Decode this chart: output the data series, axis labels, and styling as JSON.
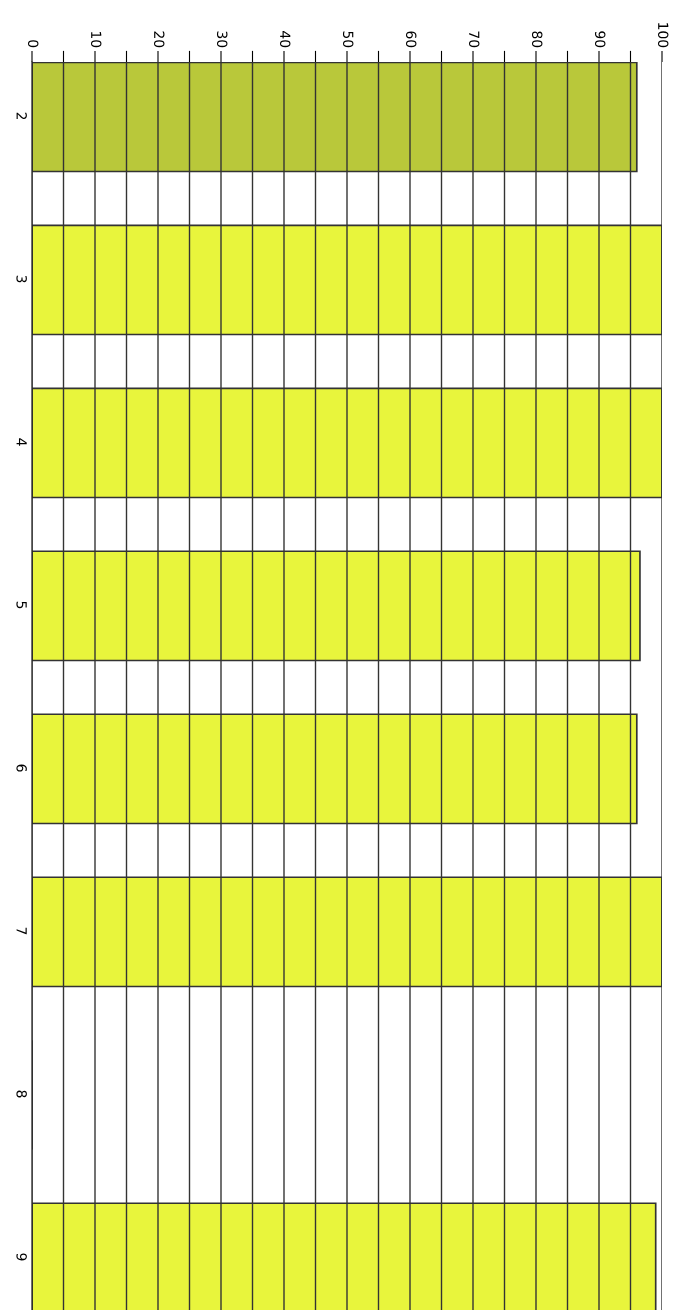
{
  "chart_data": {
    "type": "bar",
    "orientation": "horizontal",
    "categories": [
      "2",
      "3",
      "4",
      "5",
      "6",
      "7",
      "8",
      "9"
    ],
    "values": [
      96,
      100,
      100,
      96.5,
      96,
      100,
      0,
      99
    ],
    "colors": [
      "#b9c83a",
      "#e8f53c",
      "#e8f53c",
      "#e8f53c",
      "#e8f53c",
      "#e8f53c",
      "#e8f53c",
      "#e8f53c"
    ],
    "xlim": [
      0,
      100
    ],
    "xticks": [
      0,
      {
        "value": 5,
        "label": null
      },
      10,
      {
        "value": 15,
        "label": null
      },
      20,
      {
        "value": 25,
        "label": null
      },
      30,
      {
        "value": 35,
        "label": null
      },
      40,
      {
        "value": 45,
        "label": null
      },
      50,
      {
        "value": 55,
        "label": null
      },
      60,
      {
        "value": 65,
        "label": null
      },
      70,
      {
        "value": 75,
        "label": null
      },
      80,
      {
        "value": 85,
        "label": null
      },
      90,
      {
        "value": 95,
        "label": null
      },
      100
    ],
    "grid": "x"
  }
}
